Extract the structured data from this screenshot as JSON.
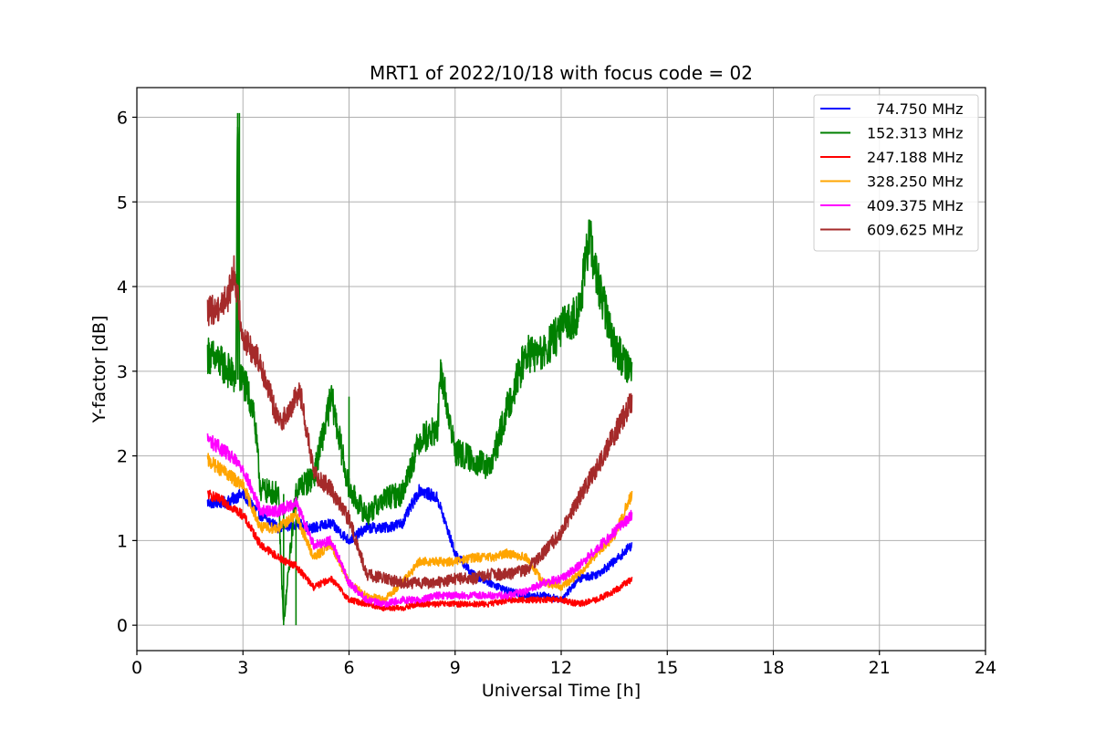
{
  "chart_data": {
    "type": "line",
    "title": "MRT1 of 2022/10/18 with focus code = 02",
    "xlabel": "Universal Time [h]",
    "ylabel": "Y-factor [dB]",
    "xlim": [
      0,
      24
    ],
    "ylim": [
      -0.3,
      6.35
    ],
    "xticks": [
      0,
      3,
      6,
      9,
      12,
      15,
      18,
      21,
      24
    ],
    "yticks": [
      0,
      1,
      2,
      3,
      4,
      5,
      6
    ],
    "grid": true,
    "legend_position": "top-right",
    "series": [
      {
        "name": "  74.750 MHz",
        "color": "#0000ff",
        "x": [
          2.0,
          2.5,
          3.0,
          3.5,
          4.0,
          4.5,
          5.0,
          5.5,
          6.0,
          6.5,
          7.0,
          7.5,
          8.0,
          8.5,
          9.0,
          9.5,
          10.0,
          10.5,
          11.0,
          11.5,
          12.0,
          12.5,
          13.0,
          13.5,
          14.0
        ],
        "y": [
          1.45,
          1.45,
          1.55,
          1.3,
          1.15,
          1.2,
          1.15,
          1.2,
          1.0,
          1.15,
          1.15,
          1.2,
          1.6,
          1.5,
          0.85,
          0.6,
          0.5,
          0.4,
          0.35,
          0.35,
          0.3,
          0.55,
          0.6,
          0.75,
          0.95
        ]
      },
      {
        "name": "152.313 MHz",
        "color": "#008000",
        "x": [
          2.0,
          2.5,
          2.8,
          2.85,
          2.9,
          3.0,
          3.3,
          3.5,
          4.0,
          4.15,
          4.5,
          5.0,
          5.5,
          6.0,
          6.5,
          7.0,
          7.5,
          8.0,
          8.5,
          8.6,
          9.0,
          9.5,
          10.0,
          10.5,
          11.0,
          11.5,
          12.0,
          12.5,
          12.8,
          13.0,
          13.5,
          14.0
        ],
        "y": [
          3.2,
          3.05,
          2.9,
          6.05,
          2.9,
          2.9,
          2.55,
          1.6,
          1.55,
          0.0,
          1.6,
          1.75,
          2.7,
          1.6,
          1.3,
          1.5,
          1.55,
          2.2,
          2.3,
          3.0,
          2.05,
          1.95,
          1.85,
          2.6,
          3.2,
          3.2,
          3.5,
          3.7,
          4.6,
          4.1,
          3.3,
          3.0
        ]
      },
      {
        "name": "247.188 MHz",
        "color": "#ff0000",
        "x": [
          2.0,
          2.5,
          3.0,
          3.5,
          4.0,
          4.5,
          5.0,
          5.5,
          6.0,
          6.5,
          7.0,
          7.5,
          8.0,
          8.5,
          9.0,
          9.5,
          10.0,
          10.5,
          11.0,
          11.5,
          12.0,
          12.5,
          13.0,
          13.5,
          14.0
        ],
        "y": [
          1.55,
          1.45,
          1.3,
          0.95,
          0.8,
          0.7,
          0.45,
          0.55,
          0.3,
          0.25,
          0.2,
          0.2,
          0.25,
          0.25,
          0.25,
          0.25,
          0.25,
          0.3,
          0.3,
          0.3,
          0.3,
          0.25,
          0.3,
          0.4,
          0.55
        ]
      },
      {
        "name": "328.250 MHz",
        "color": "#ffa500",
        "x": [
          2.0,
          2.5,
          3.0,
          3.5,
          4.0,
          4.5,
          5.0,
          5.5,
          6.0,
          6.5,
          7.0,
          7.5,
          8.0,
          8.5,
          9.0,
          9.5,
          10.0,
          10.5,
          11.0,
          11.5,
          12.0,
          12.5,
          13.0,
          13.5,
          14.0
        ],
        "y": [
          1.95,
          1.8,
          1.65,
          1.15,
          1.15,
          1.3,
          0.8,
          0.95,
          0.5,
          0.35,
          0.3,
          0.5,
          0.75,
          0.75,
          0.75,
          0.8,
          0.8,
          0.85,
          0.8,
          0.5,
          0.45,
          0.6,
          0.85,
          1.05,
          1.55
        ]
      },
      {
        "name": "409.375 MHz",
        "color": "#ff00ff",
        "x": [
          2.0,
          2.5,
          3.0,
          3.5,
          4.0,
          4.5,
          5.0,
          5.5,
          6.0,
          6.5,
          7.0,
          7.5,
          8.0,
          8.5,
          9.0,
          9.5,
          10.0,
          10.5,
          11.0,
          11.5,
          12.0,
          12.5,
          13.0,
          13.5,
          14.0
        ],
        "y": [
          2.2,
          2.05,
          1.85,
          1.35,
          1.35,
          1.45,
          0.95,
          1.0,
          0.5,
          0.3,
          0.25,
          0.3,
          0.3,
          0.35,
          0.35,
          0.35,
          0.35,
          0.35,
          0.4,
          0.5,
          0.55,
          0.7,
          0.9,
          1.1,
          1.3
        ]
      },
      {
        "name": "609.625 MHz",
        "color": "#a52a2a",
        "x": [
          2.0,
          2.3,
          2.6,
          2.75,
          3.0,
          3.5,
          4.0,
          4.3,
          4.6,
          5.0,
          5.5,
          6.0,
          6.5,
          7.0,
          7.5,
          8.0,
          8.5,
          9.0,
          9.5,
          10.0,
          10.5,
          11.0,
          11.5,
          12.0,
          12.5,
          13.0,
          13.5,
          14.0
        ],
        "y": [
          3.7,
          3.75,
          3.9,
          4.2,
          3.4,
          3.1,
          2.4,
          2.5,
          2.8,
          1.8,
          1.6,
          1.25,
          0.6,
          0.55,
          0.5,
          0.5,
          0.5,
          0.55,
          0.55,
          0.6,
          0.6,
          0.65,
          0.85,
          1.1,
          1.5,
          1.85,
          2.25,
          2.65
        ]
      }
    ]
  }
}
